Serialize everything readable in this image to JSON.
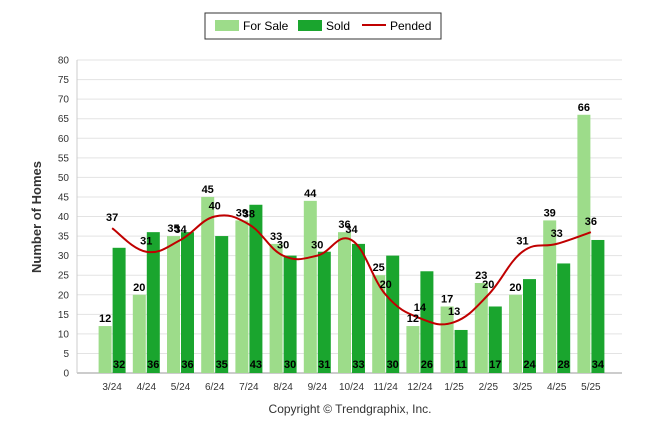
{
  "chart_data": {
    "type": "bar",
    "ylabel": "Number of Homes",
    "xlabel": "",
    "ylim": [
      0,
      80
    ],
    "yticks": [
      0,
      5,
      10,
      15,
      20,
      25,
      30,
      35,
      40,
      45,
      50,
      55,
      60,
      65,
      70,
      75,
      80
    ],
    "grid": true,
    "legend_position": "top-center",
    "categories": [
      "3/24",
      "4/24",
      "5/24",
      "6/24",
      "7/24",
      "8/24",
      "9/24",
      "10/24",
      "11/24",
      "12/24",
      "1/25",
      "2/25",
      "3/25",
      "4/25",
      "5/25"
    ],
    "series": [
      {
        "name": "For Sale",
        "type": "bar",
        "color": "#9ddc8a",
        "values": [
          12,
          20,
          35,
          45,
          39,
          33,
          44,
          36,
          25,
          12,
          17,
          23,
          20,
          39,
          66
        ]
      },
      {
        "name": "Sold",
        "type": "bar",
        "color": "#1aa52e",
        "values": [
          32,
          36,
          36,
          35,
          43,
          30,
          31,
          33,
          30,
          26,
          11,
          17,
          24,
          28,
          34
        ]
      },
      {
        "name": "Pended",
        "type": "line",
        "color": "#c00000",
        "values": [
          37,
          31,
          34,
          40,
          38,
          30,
          30,
          34,
          20,
          14,
          13,
          20,
          31,
          33,
          36
        ]
      }
    ]
  },
  "footer": {
    "copyright": "Copyright © Trendgraphix, Inc."
  }
}
